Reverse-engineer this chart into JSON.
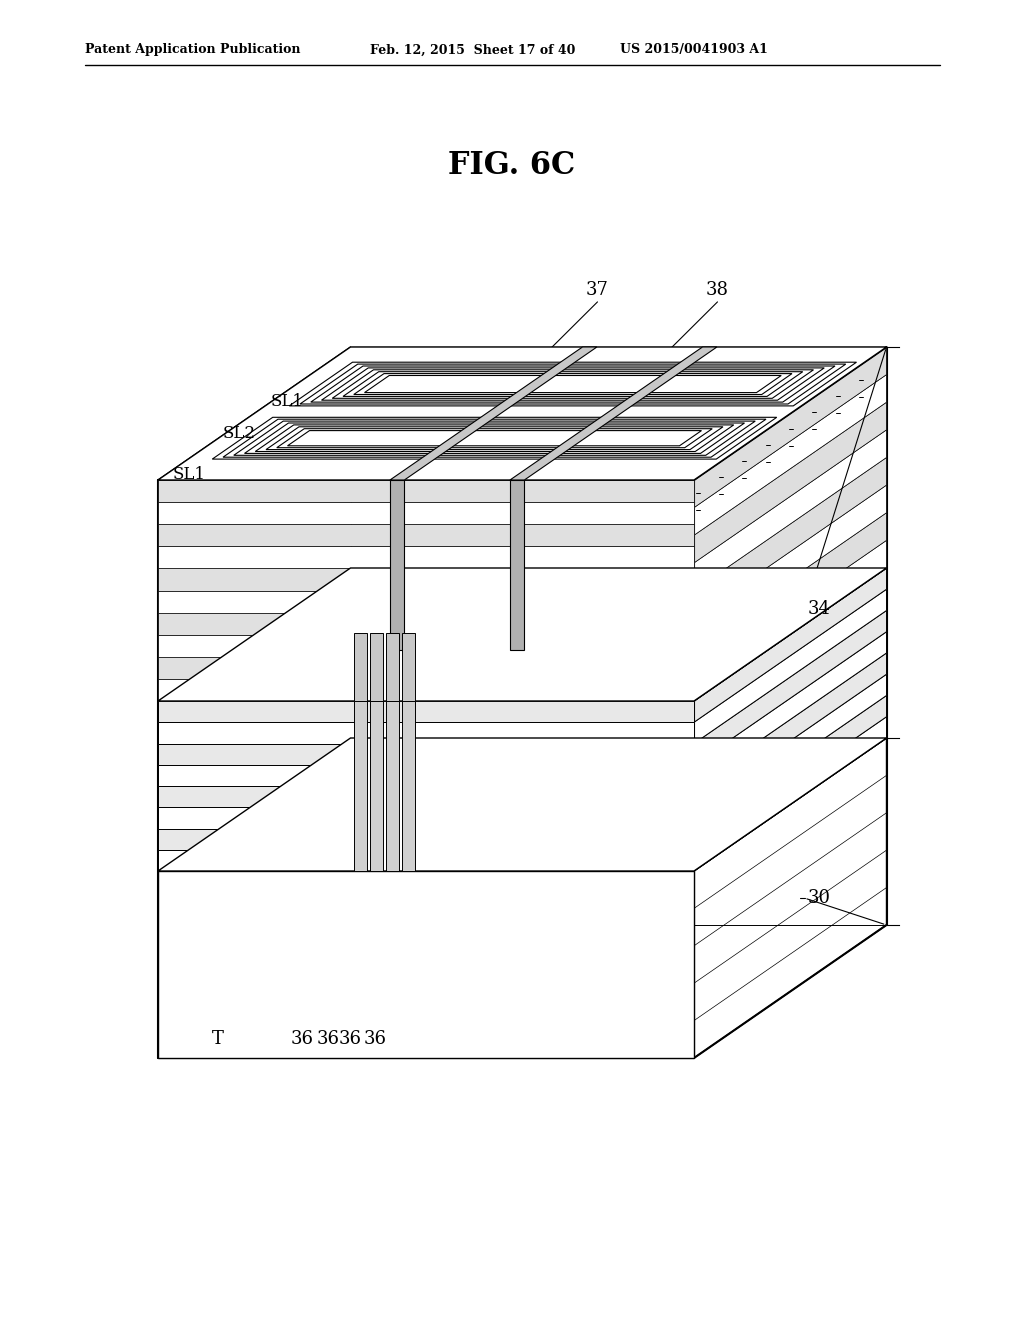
{
  "title": "FIG. 6C",
  "header_left": "Patent Application Publication",
  "header_mid": "Feb. 12, 2015  Sheet 17 of 40",
  "header_right": "US 2015/0041903 A1",
  "bg_color": "#ffffff",
  "line_color": "#000000",
  "label_30": "30",
  "label_34": "34",
  "label_37": "37",
  "label_38": "38",
  "label_SL1_top": "SL1",
  "label_SL2": "SL2",
  "label_SL1_bot": "SL1",
  "label_T": "T",
  "label_36": "36"
}
